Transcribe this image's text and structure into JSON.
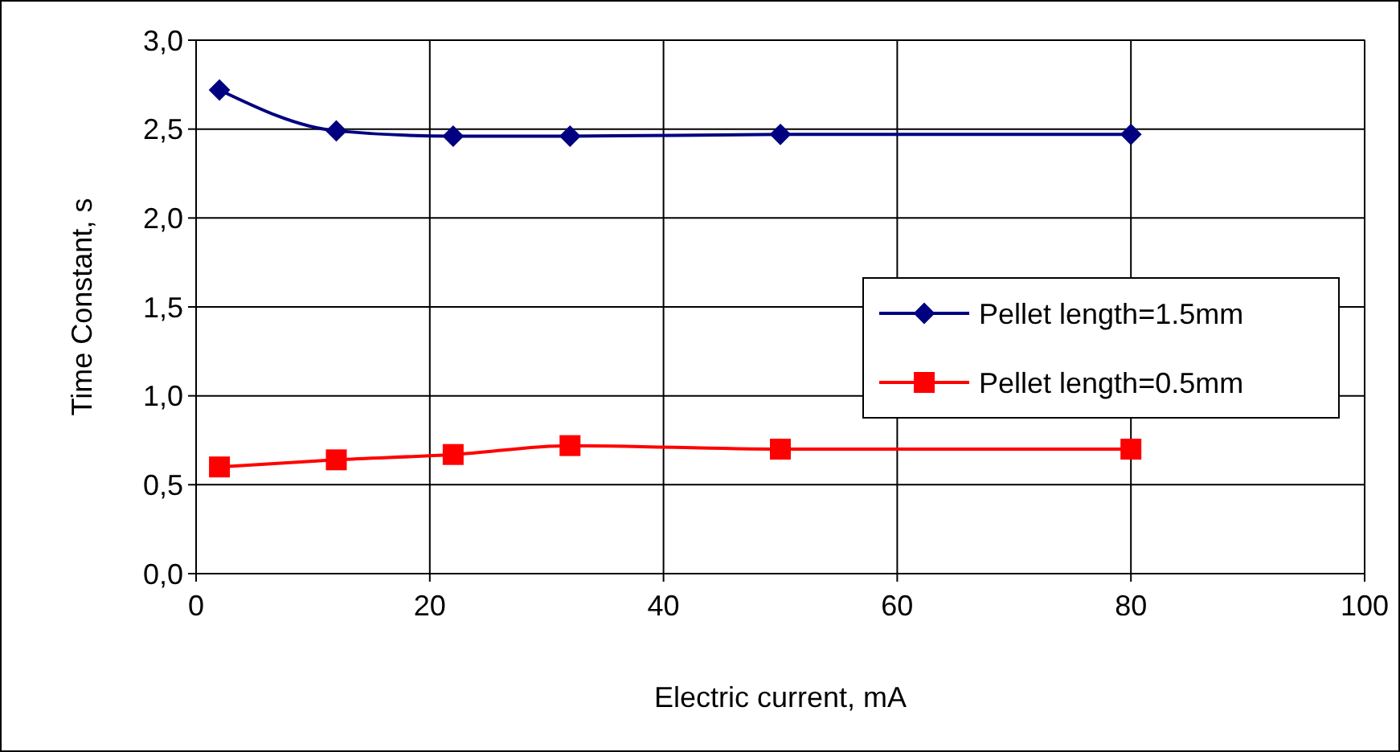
{
  "chart_data": {
    "type": "line",
    "xlabel": "Electric current, mA",
    "ylabel": "Time Constant, s",
    "xlim": [
      0,
      100
    ],
    "xticks": [
      0,
      20,
      40,
      60,
      80,
      100
    ],
    "ylim": [
      0,
      3
    ],
    "yticks": [
      {
        "value": 0,
        "label": "0,0"
      },
      {
        "value": 0.5,
        "label": "0,5"
      },
      {
        "value": 1,
        "label": "1,0"
      },
      {
        "value": 1.5,
        "label": "1,5"
      },
      {
        "value": 2,
        "label": "2,0"
      },
      {
        "value": 2.5,
        "label": "2,5"
      },
      {
        "value": 3,
        "label": "3,0"
      }
    ],
    "grid": true,
    "legend": "right",
    "line_style": "solid",
    "series": [
      {
        "name": "Pellet length=1.5mm",
        "color": "#000080",
        "marker": "diamond",
        "x": [
          2,
          12,
          22,
          32,
          50,
          80
        ],
        "values": [
          2.72,
          2.49,
          2.46,
          2.46,
          2.47,
          2.47
        ]
      },
      {
        "name": "Pellet length=0.5mm",
        "color": "#ff0000",
        "marker": "square",
        "x": [
          2,
          12,
          22,
          32,
          50,
          80
        ],
        "values": [
          0.6,
          0.64,
          0.67,
          0.72,
          0.7,
          0.7
        ]
      }
    ]
  }
}
